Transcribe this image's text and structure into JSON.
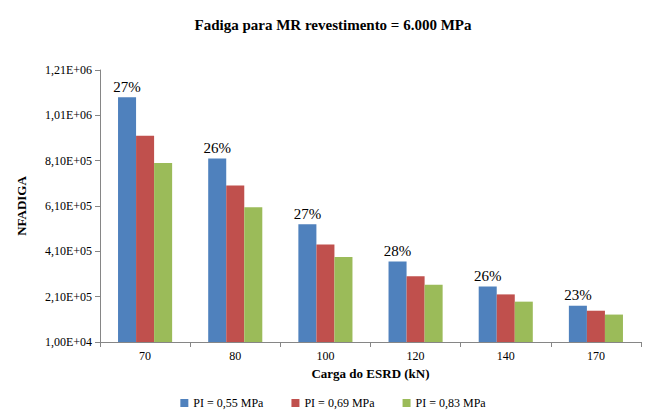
{
  "chart_data": {
    "type": "bar",
    "title": "Fadiga para MR revestimento = 6.000 MPa",
    "x_label": "Carga do ESRD (kN)",
    "y_label": "NFADIGA",
    "categories": [
      "70",
      "80",
      "100",
      "120",
      "140",
      "170"
    ],
    "series": [
      {
        "name": "PI = 0,55 MPa",
        "color": "#4f81bd",
        "values": [
          1090000,
          820000,
          530000,
          365000,
          255000,
          170000
        ]
      },
      {
        "name": "PI = 0,69 MPa",
        "color": "#c0504d",
        "values": [
          920000,
          700000,
          440000,
          300000,
          220000,
          148000
        ]
      },
      {
        "name": "PI = 0,83 MPa",
        "color": "#9bbb59",
        "values": [
          800000,
          605000,
          385000,
          263000,
          188000,
          131000
        ]
      }
    ],
    "annotations": [
      {
        "category": "70",
        "label": "27%",
        "value": 27
      },
      {
        "category": "80",
        "label": "26%",
        "value": 26
      },
      {
        "category": "100",
        "label": "27%",
        "value": 27
      },
      {
        "category": "120",
        "label": "28%",
        "value": 28
      },
      {
        "category": "140",
        "label": "26%",
        "value": 26
      },
      {
        "category": "170",
        "label": "23%",
        "value": 23
      }
    ],
    "ylim": [
      10000,
      1210000
    ],
    "yticks": [
      {
        "value": 10000,
        "label": "1,00E+04"
      },
      {
        "value": 210000,
        "label": "2,10E+05"
      },
      {
        "value": 410000,
        "label": "4,10E+05"
      },
      {
        "value": 610000,
        "label": "6,10E+05"
      },
      {
        "value": 810000,
        "label": "8,10E+05"
      },
      {
        "value": 1010000,
        "label": "1,01E+06"
      },
      {
        "value": 1210000,
        "label": "1,21E+06"
      }
    ],
    "grid": false,
    "legend": "bottom"
  }
}
